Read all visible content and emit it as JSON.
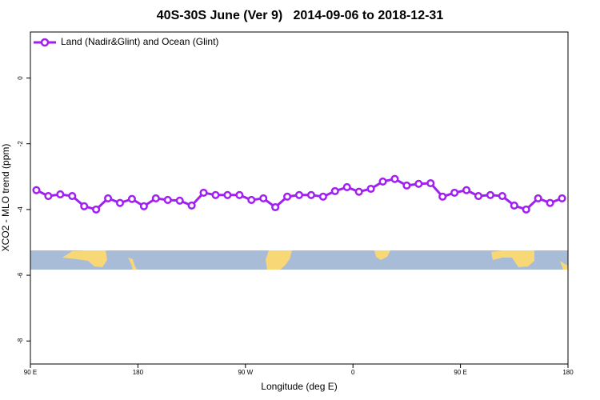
{
  "chart_data": {
    "type": "line",
    "title": "40S-30S June (Ver 9)   2014-09-06 to 2018-12-31",
    "x_label": "Longitude (deg E)",
    "y_label": "XCO2 - MLO trend (ppm)",
    "x": [
      95,
      105,
      115,
      125,
      135,
      145,
      155,
      165,
      175,
      185,
      195,
      205,
      215,
      225,
      235,
      245,
      255,
      265,
      275,
      285,
      295,
      305,
      315,
      325,
      335,
      345,
      355,
      365,
      375,
      385,
      395,
      405,
      415,
      425,
      435,
      445,
      455,
      465,
      475,
      485,
      495,
      505,
      515,
      525,
      535
    ],
    "series": [
      {
        "name": "Land (Nadir&Glint) and Ocean (Glint)",
        "color": "#a020f0",
        "values": [
          -3.41,
          -3.59,
          -3.54,
          -3.59,
          -3.9,
          -4.0,
          -3.66,
          -3.8,
          -3.68,
          -3.9,
          -3.66,
          -3.71,
          -3.73,
          -3.88,
          -3.49,
          -3.56,
          -3.56,
          -3.56,
          -3.71,
          -3.66,
          -3.93,
          -3.61,
          -3.56,
          -3.56,
          -3.61,
          -3.44,
          -3.32,
          -3.46,
          -3.37,
          -3.15,
          -3.07,
          -3.27,
          -3.22,
          -3.2,
          -3.61,
          -3.49,
          -3.41,
          -3.59,
          -3.56,
          -3.59,
          -3.88,
          -4.0,
          -3.66,
          -3.8,
          -3.66
        ]
      }
    ],
    "xlim": [
      90,
      540
    ],
    "xticks": [
      {
        "value": 90,
        "label": "90 E"
      },
      180,
      {
        "value": 270,
        "label": "90 W"
      },
      {
        "value": 360,
        "label": "0"
      },
      {
        "value": 450,
        "label": "90 E"
      },
      {
        "value": 540,
        "label": "180"
      }
    ],
    "ylim": [
      -8.7,
      1.4
    ],
    "yticks": [
      0,
      -2,
      -4,
      -6,
      -8
    ],
    "legend": "top-left"
  }
}
